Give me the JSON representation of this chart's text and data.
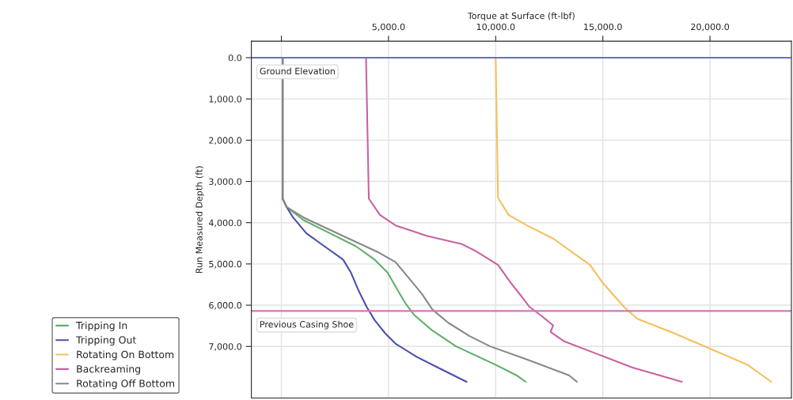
{
  "chart_data": {
    "type": "line",
    "xlabel": "Torque at Surface (ft-lbf)",
    "ylabel": "Run Measured Depth (ft)",
    "xlim": [
      -1400,
      23800
    ],
    "ylim": [
      8250,
      -400
    ],
    "xticks": [
      {
        "value": 0,
        "label": null
      },
      {
        "value": 5000,
        "label": "5,000.0"
      },
      {
        "value": 10000,
        "label": "10,000.0"
      },
      {
        "value": 15000,
        "label": "15,000.0"
      },
      {
        "value": 20000,
        "label": "20,000.0"
      }
    ],
    "yticks": [
      {
        "value": 0,
        "label": "0.0"
      },
      {
        "value": 1000,
        "label": "1,000.0"
      },
      {
        "value": 2000,
        "label": "2,000.0"
      },
      {
        "value": 3000,
        "label": "3,000.0"
      },
      {
        "value": 4000,
        "label": "4,000.0"
      },
      {
        "value": 5000,
        "label": "5,000.0"
      },
      {
        "value": 6000,
        "label": "6,000.0"
      },
      {
        "value": 7000,
        "label": "7,000.0"
      }
    ],
    "grid": true,
    "legend": "left",
    "marker": "none",
    "line_style": "solid",
    "series": [
      {
        "name": "Tripping In",
        "color": "#5fae6a",
        "x": [
          60,
          60,
          245,
          1040,
          2270,
          3490,
          4350,
          4960,
          5450,
          5820,
          6190,
          7050,
          8150,
          9990,
          10970,
          11400
        ],
        "values": [
          0,
          3420,
          3620,
          3939,
          4258,
          4576,
          4895,
          5214,
          5660,
          5979,
          6233,
          6616,
          6998,
          7444,
          7699,
          7858
        ]
      },
      {
        "name": "Tripping Out",
        "color": "#4b4faa",
        "x": [
          60,
          60,
          245,
          550,
          1165,
          2020,
          2880,
          3250,
          3615,
          3980,
          4350,
          4840,
          5330,
          6310,
          7290,
          8640
        ],
        "values": [
          0,
          3420,
          3620,
          3875,
          4258,
          4576,
          4895,
          5214,
          5660,
          6042,
          6361,
          6679,
          6934,
          7252,
          7508,
          7858
        ]
      },
      {
        "name": "Rotating On Bottom",
        "color": "#f6bf5c",
        "x": [
          10000,
          10110,
          10600,
          11460,
          12680,
          14400,
          15010,
          15990,
          16610,
          18320,
          20040,
          21750,
          22860
        ],
        "values": [
          0,
          3397,
          3811,
          4066,
          4384,
          5023,
          5468,
          6042,
          6329,
          6679,
          7061,
          7444,
          7858
        ]
      },
      {
        "name": "Backreaming",
        "color": "#c9619f",
        "x": [
          3950,
          4080,
          4600,
          5330,
          6800,
          8390,
          9010,
          10110,
          10720,
          11210,
          11580,
          12070,
          12680,
          12560,
          13170,
          14770,
          16360,
          18690
        ],
        "values": [
          0,
          3416,
          3811,
          4066,
          4321,
          4512,
          4671,
          5023,
          5468,
          5788,
          6042,
          6233,
          6488,
          6647,
          6870,
          7189,
          7508,
          7858
        ]
      },
      {
        "name": "Rotating Off Bottom",
        "color": "#888888",
        "x": [
          60,
          60,
          245,
          1040,
          2880,
          4470,
          5330,
          5945,
          6555,
          7050,
          7785,
          8765,
          9740,
          11460,
          13420,
          13790
        ],
        "values": [
          0,
          3420,
          3620,
          3875,
          4321,
          4704,
          4958,
          5340,
          5723,
          6106,
          6425,
          6743,
          6998,
          7317,
          7699,
          7858
        ]
      }
    ],
    "ref_lines": [
      {
        "axis": "y",
        "value": 0,
        "label": "Ground Elevation",
        "color": "#6a6fcc"
      },
      {
        "axis": "y",
        "value": 6140,
        "label": "Previous Casing Shoe",
        "color": "#d377b9"
      }
    ]
  }
}
